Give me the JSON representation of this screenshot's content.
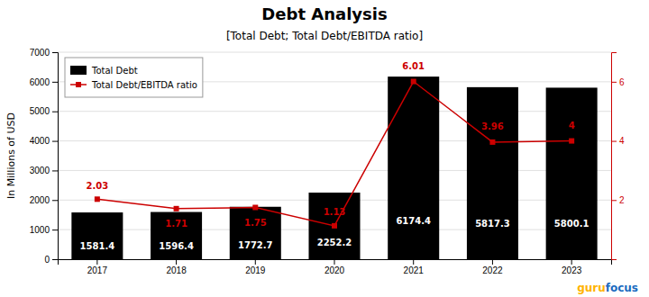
{
  "chart_data": {
    "type": "bar",
    "title": "Debt Analysis",
    "subtitle": "[Total Debt; Total Debt/EBITDA ratio]",
    "ylabel": "In Millions of USD",
    "categories": [
      "2017",
      "2018",
      "2019",
      "2020",
      "2021",
      "2022",
      "2023"
    ],
    "ylim": [
      0,
      7000
    ],
    "yticks": [
      0,
      1000,
      2000,
      3000,
      4000,
      5000,
      6000,
      7000
    ],
    "y2lim": [
      0,
      7
    ],
    "y2ticks": [
      2,
      4,
      6
    ],
    "grid": true,
    "legend": "upper left",
    "data_labels": true,
    "series": [
      {
        "name": "Total Debt",
        "type": "bar",
        "color": "#000000",
        "values": [
          1581.4,
          1596.4,
          1772.7,
          2252.2,
          6174.4,
          5817.3,
          5800.1
        ]
      },
      {
        "name": "Total Debt/EBITDA ratio",
        "type": "line",
        "color": "#cc0000",
        "marker": "square",
        "axis": "y2",
        "values": [
          2.03,
          1.71,
          1.75,
          1.13,
          6.01,
          3.96,
          4.0
        ]
      }
    ],
    "annotations": [
      {
        "text": "guru",
        "color": "#FFB300"
      },
      {
        "text": "f",
        "color": "#1a6bbf"
      },
      {
        "text": "ocus",
        "color": "#1a6bbf"
      }
    ]
  }
}
